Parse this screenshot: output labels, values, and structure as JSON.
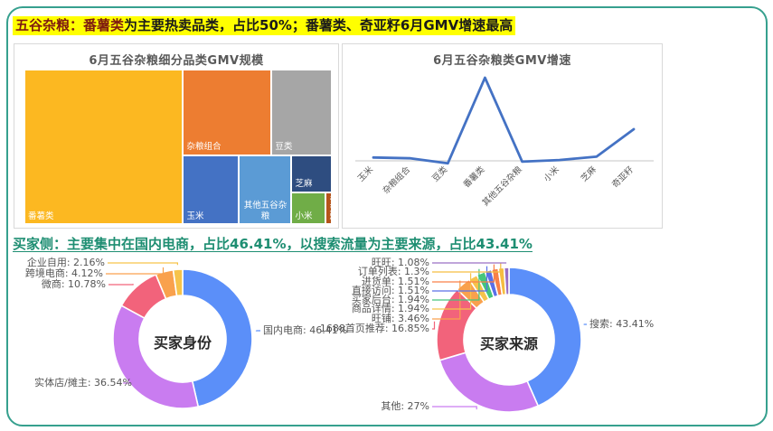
{
  "headlines": {
    "section1_lead": "五谷杂粮：番薯类",
    "section1_rest": "为主要热卖品类，占比50%；番薯类、奇亚籽6月GMV增速最高",
    "section2": "买家侧：主要集中在国内电商，占比46.41%，以搜索流量为主要来源，占比43.41%",
    "highlight_color": "#ffff00",
    "section2_color": "#1e8e72"
  },
  "chart_data": [
    {
      "id": "treemap_gmv_scale",
      "type": "treemap",
      "title": "6月五谷杂粮细分品类GMV规模",
      "items": [
        {
          "label": "番薯类",
          "share_pct": 50.0,
          "color": "#fcb821",
          "rect": {
            "x": 0,
            "y": 0,
            "w": 51.6,
            "h": 100
          },
          "align": "left"
        },
        {
          "label": "杂粮组合",
          "share_pct": 15.7,
          "color": "#ed7d31",
          "rect": {
            "x": 51.6,
            "y": 0,
            "w": 28.8,
            "h": 55.4
          },
          "align": "left"
        },
        {
          "label": "豆类",
          "share_pct": 10.8,
          "color": "#a6a6a6",
          "rect": {
            "x": 80.4,
            "y": 0,
            "w": 19.6,
            "h": 55.4
          },
          "align": "left"
        },
        {
          "label": "玉米",
          "share_pct": 8.0,
          "color": "#4472c4",
          "rect": {
            "x": 51.6,
            "y": 55.4,
            "w": 18.0,
            "h": 44.6
          },
          "align": "left"
        },
        {
          "label": "其他五谷杂粮",
          "share_pct": 7.5,
          "color": "#5b9bd5",
          "rect": {
            "x": 69.6,
            "y": 55.4,
            "w": 17.3,
            "h": 44.6
          },
          "align": "center"
        },
        {
          "label": "芝麻",
          "share_pct": 3.5,
          "color": "#2e4d80",
          "rect": {
            "x": 86.9,
            "y": 55.4,
            "w": 13.1,
            "h": 24.0
          },
          "align": "left"
        },
        {
          "label": "小米",
          "share_pct": 2.7,
          "color": "#70ad47",
          "rect": {
            "x": 86.9,
            "y": 79.4,
            "w": 11.0,
            "h": 20.6
          },
          "align": "left"
        },
        {
          "label": "奇亚籽",
          "share_pct": 0.4,
          "color": "#b5541a",
          "rect": {
            "x": 97.9,
            "y": 79.4,
            "w": 2.1,
            "h": 20.6
          },
          "align": "left",
          "vertical": true
        }
      ]
    },
    {
      "id": "line_gmv_growth",
      "type": "line",
      "title": "6月五谷杂粮类GMV增速",
      "categories": [
        "玉米",
        "杂粮组合",
        "豆类",
        "番薯类",
        "其他五谷杂粮",
        "小米",
        "芝麻",
        "奇亚籽"
      ],
      "values": [
        4,
        3,
        -3,
        100,
        -1,
        1,
        5,
        38
      ],
      "value_note": "relative growth, estimated from pixels, peak normalized to 100",
      "ylim": [
        -10,
        110
      ],
      "line_color": "#4472c4",
      "axis_color": "#d9d9d9",
      "grid": false,
      "legend": false
    },
    {
      "id": "donut_buyer_identity",
      "type": "pie",
      "title": "买家身份",
      "slices": [
        {
          "label": "国内电商",
          "pct": "46.41%",
          "value": 46.41,
          "color": "#5b8ff9"
        },
        {
          "label": "实体店/摊主",
          "pct": "36.54%",
          "value": 36.54,
          "color": "#c97cf0"
        },
        {
          "label": "微商",
          "pct": "10.78%",
          "value": 10.78,
          "color": "#f2637b"
        },
        {
          "label": "跨境电商",
          "pct": "4.12%",
          "value": 4.12,
          "color": "#f9a14d"
        },
        {
          "label": "企业自用",
          "pct": "2.16%",
          "value": 2.16,
          "color": "#f6c34a"
        }
      ]
    },
    {
      "id": "donut_buyer_source",
      "type": "pie",
      "title": "买家来源",
      "slices": [
        {
          "label": "搜索",
          "pct": "43.41%",
          "value": 43.41,
          "color": "#5b8ff9"
        },
        {
          "label": "其他",
          "pct": "27%",
          "value": 27,
          "color": "#c97cf0"
        },
        {
          "label": "1688首页推荐",
          "pct": "16.85%",
          "value": 16.85,
          "color": "#f2637b"
        },
        {
          "label": "旺铺",
          "pct": "3.46%",
          "value": 3.46,
          "color": "#f9a14d"
        },
        {
          "label": "商品详情",
          "pct": "1.94%",
          "value": 1.94,
          "color": "#f6c34a"
        },
        {
          "label": "买家后台",
          "pct": "1.94%",
          "value": 1.94,
          "color": "#45c57c"
        },
        {
          "label": "直接访问",
          "pct": "1.51%",
          "value": 1.51,
          "color": "#5a6fe8"
        },
        {
          "label": "进货单",
          "pct": "1.51%",
          "value": 1.51,
          "color": "#f98049"
        },
        {
          "label": "订单列表",
          "pct": "1.3%",
          "value": 1.3,
          "color": "#f5bd41"
        },
        {
          "label": "旺旺",
          "pct": "1.08%",
          "value": 1.08,
          "color": "#9a6fc4"
        }
      ]
    }
  ]
}
